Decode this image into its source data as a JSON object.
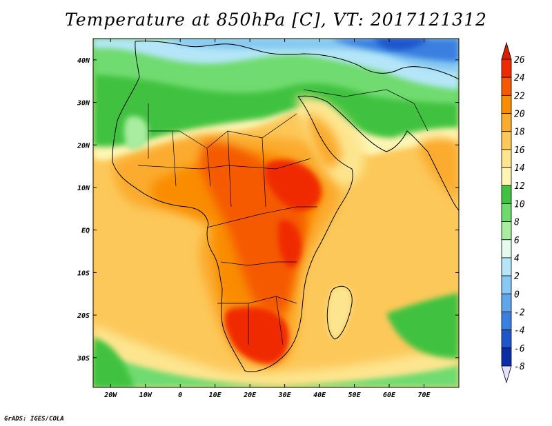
{
  "title": "Temperature at 850hPa [C], VT: 2017121312",
  "credit": "GrADS: IGES/COLA",
  "map": {
    "lon_range": [
      -25,
      80
    ],
    "lat_range": [
      -37,
      45
    ],
    "x_ticks": [
      "20W",
      "10W",
      "0",
      "10E",
      "20E",
      "30E",
      "40E",
      "50E",
      "60E",
      "70E"
    ],
    "x_tick_lons": [
      -20,
      -10,
      0,
      10,
      20,
      30,
      40,
      50,
      60,
      70
    ],
    "y_ticks": [
      "40N",
      "30N",
      "20N",
      "10N",
      "EQ",
      "10S",
      "20S",
      "30S"
    ],
    "y_tick_lats": [
      40,
      30,
      20,
      10,
      0,
      -10,
      -20,
      -30
    ]
  },
  "colorbar": {
    "labels": [
      "26",
      "24",
      "22",
      "20",
      "18",
      "16",
      "14",
      "12",
      "10",
      "8",
      "6",
      "4",
      "2",
      "0",
      "-2",
      "-4",
      "-6",
      "-8"
    ],
    "colors": [
      "#f02a00",
      "#f55a00",
      "#fa8c00",
      "#fbab2e",
      "#fcc85a",
      "#fde58f",
      "#fdf5b4",
      "#3fc23f",
      "#6fdb6f",
      "#a8eda0",
      "#e6fbf0",
      "#b4e6f8",
      "#87c9f2",
      "#5fa6ea",
      "#3a80e0",
      "#1e55cc",
      "#0b2ea8",
      "#061a7c"
    ],
    "top_color": "#d82000",
    "bottom_color": "#e6e0ff"
  }
}
